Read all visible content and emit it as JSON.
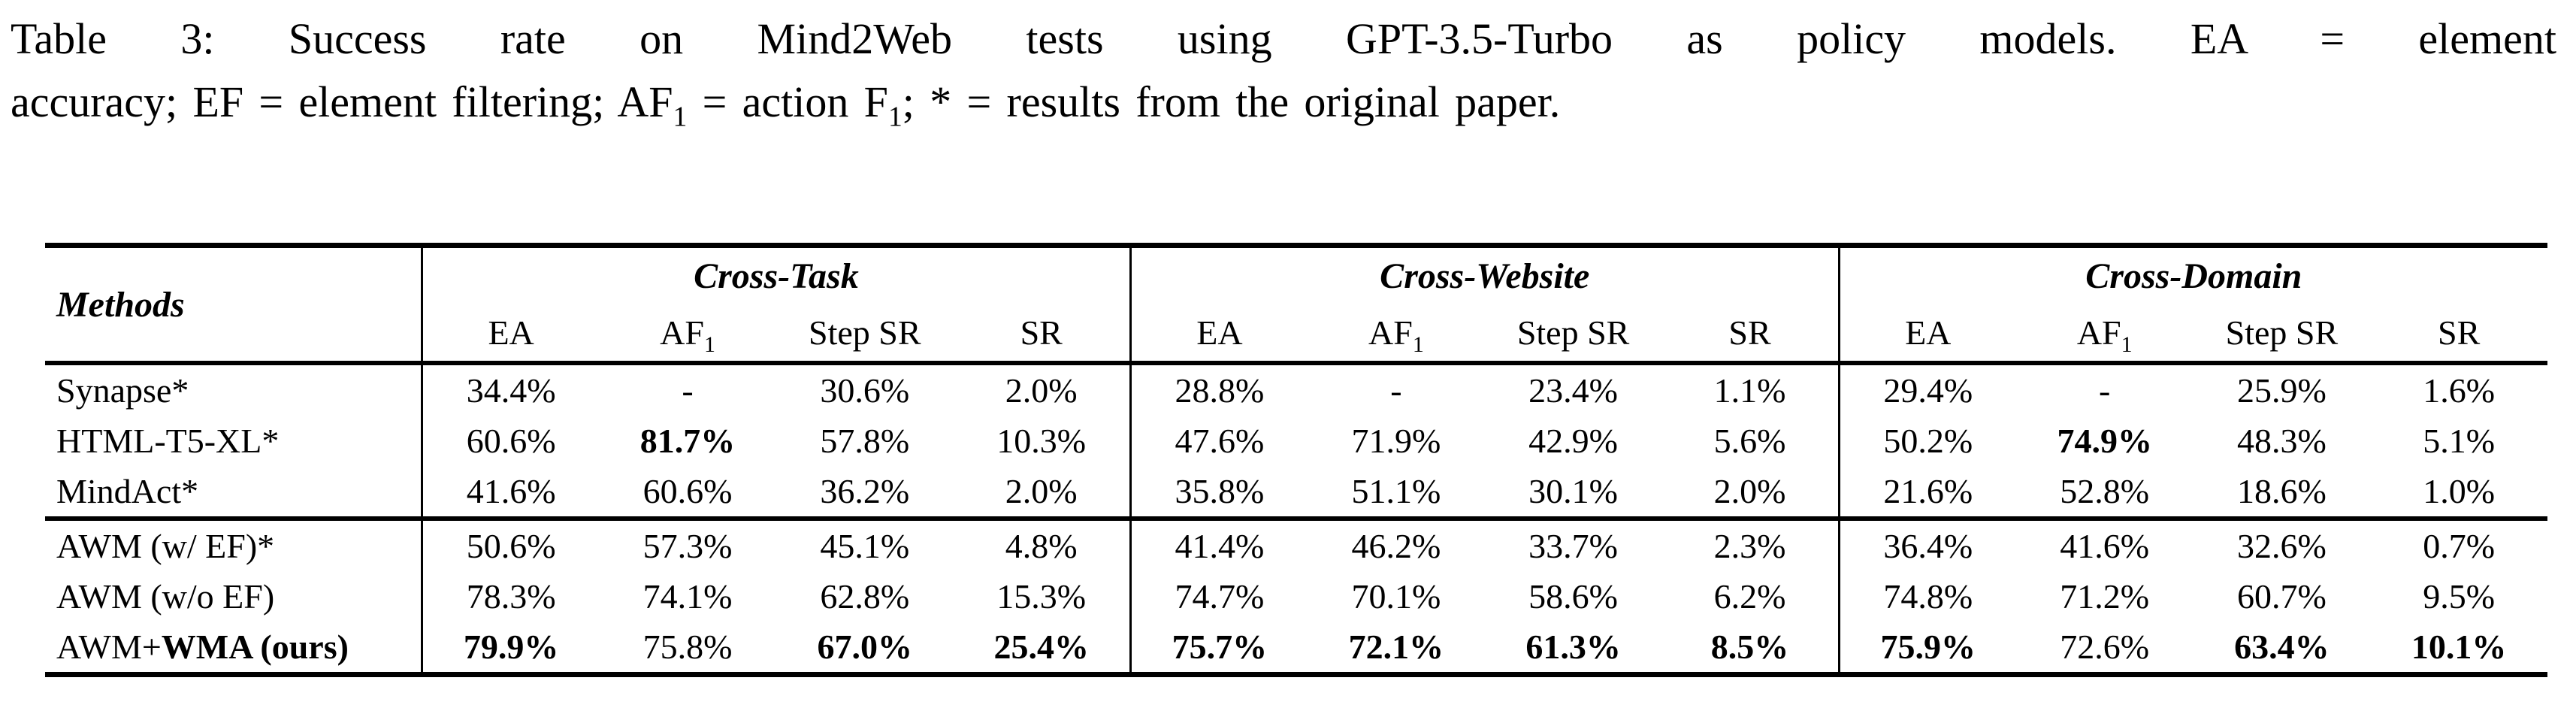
{
  "colors": {
    "background": "#ffffff",
    "text": "#000000",
    "rule": "#000000"
  },
  "caption": {
    "line1": "Table 3: Success rate on Mind2Web tests using GPT-3.5-Turbo as policy models. EA = element",
    "line2_part1": "accuracy; EF = element filtering; AF",
    "line2_sub1": "1",
    "line2_part2": " = action F",
    "line2_sub2": "1",
    "line2_part3": "; * = results from the original paper."
  },
  "table": {
    "methods_header": "Methods",
    "groups": [
      {
        "label": "Cross-Task",
        "cols": {
          "ea": "EA",
          "af_main": "AF",
          "af_sub": "1",
          "step_sr": "Step SR",
          "sr": "SR"
        }
      },
      {
        "label": "Cross-Website",
        "cols": {
          "ea": "EA",
          "af_main": "AF",
          "af_sub": "1",
          "step_sr": "Step SR",
          "sr": "SR"
        }
      },
      {
        "label": "Cross-Domain",
        "cols": {
          "ea": "EA",
          "af_main": "AF",
          "af_sub": "1",
          "step_sr": "Step SR",
          "sr": "SR"
        }
      }
    ],
    "rows": [
      {
        "label": "Synapse*",
        "label_bold": "",
        "cells": [
          "34.4%",
          "-",
          "30.6%",
          "2.0%",
          "28.8%",
          "-",
          "23.4%",
          "1.1%",
          "29.4%",
          "-",
          "25.9%",
          "1.6%"
        ]
      },
      {
        "label": "HTML-T5-XL*",
        "label_bold": "",
        "cells": [
          "60.6%",
          "81.7%",
          "57.8%",
          "10.3%",
          "47.6%",
          "71.9%",
          "42.9%",
          "5.6%",
          "50.2%",
          "74.9%",
          "48.3%",
          "5.1%"
        ]
      },
      {
        "label": "MindAct*",
        "label_bold": "",
        "cells": [
          "41.6%",
          "60.6%",
          "36.2%",
          "2.0%",
          "35.8%",
          "51.1%",
          "30.1%",
          "2.0%",
          "21.6%",
          "52.8%",
          "18.6%",
          "1.0%"
        ]
      },
      {
        "label": "AWM (w/ EF)*",
        "label_bold": "",
        "cells": [
          "50.6%",
          "57.3%",
          "45.1%",
          "4.8%",
          "41.4%",
          "46.2%",
          "33.7%",
          "2.3%",
          "36.4%",
          "41.6%",
          "32.6%",
          "0.7%"
        ]
      },
      {
        "label": "AWM (w/o EF)",
        "label_bold": "",
        "cells": [
          "78.3%",
          "74.1%",
          "62.8%",
          "15.3%",
          "74.7%",
          "70.1%",
          "58.6%",
          "6.2%",
          "74.8%",
          "71.2%",
          "60.7%",
          "9.5%"
        ]
      },
      {
        "label": "AWM+",
        "label_bold": "WMA (ours)",
        "cells": [
          "79.9%",
          "75.8%",
          "67.0%",
          "25.4%",
          "75.7%",
          "72.1%",
          "61.3%",
          "8.5%",
          "75.9%",
          "72.6%",
          "63.4%",
          "10.1%"
        ]
      }
    ],
    "bold_cells": [
      "1-1",
      "1-9",
      "5-0",
      "5-2",
      "5-3",
      "5-4",
      "5-5",
      "5-6",
      "5-7",
      "5-8",
      "5-10",
      "5-11"
    ]
  }
}
